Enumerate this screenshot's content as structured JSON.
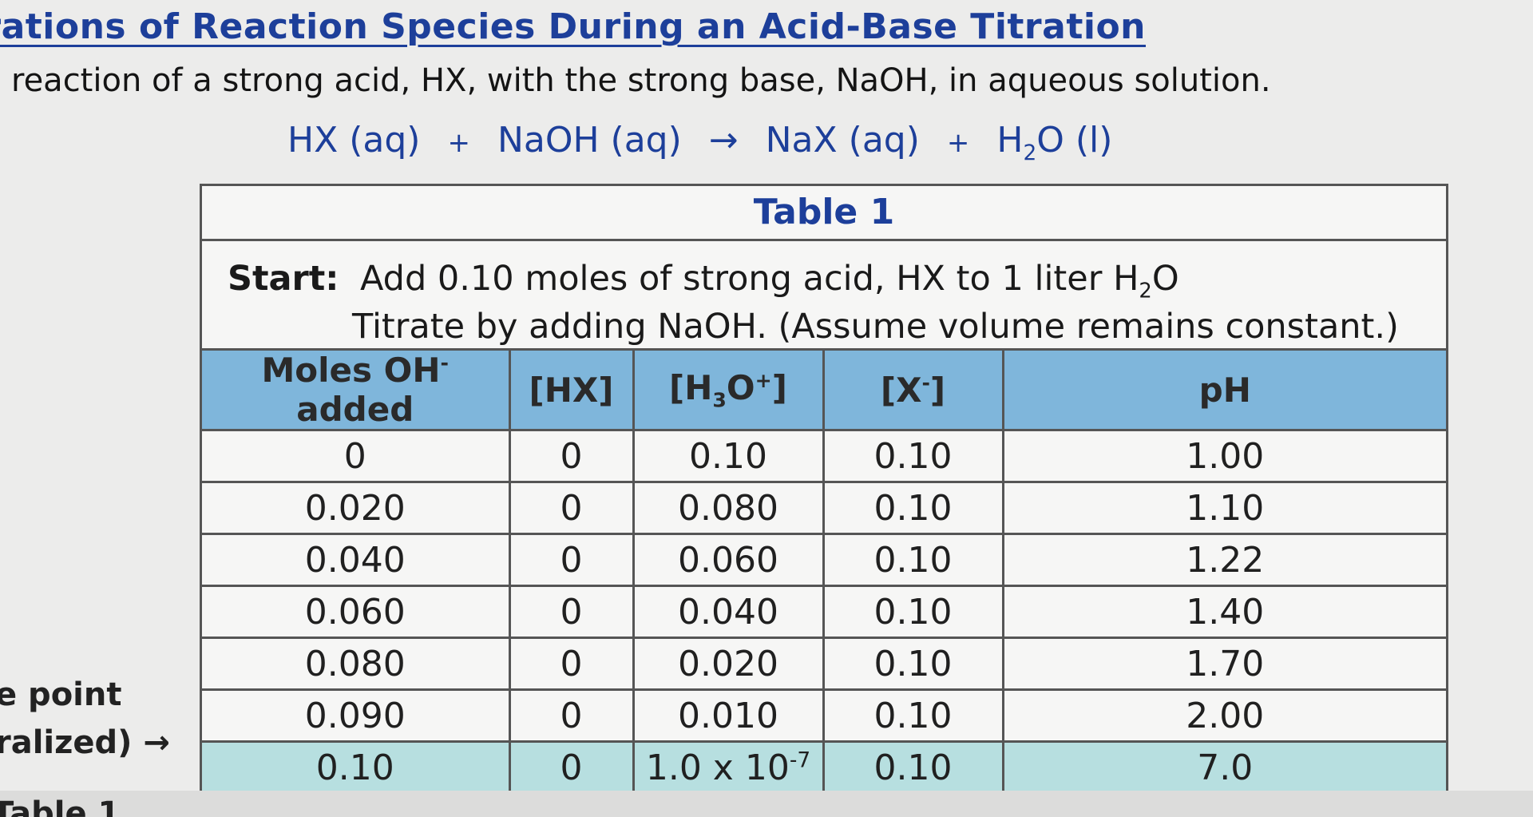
{
  "title": "entrations of Reaction Species During an Acid-Base Titration",
  "intro": "reaction of a strong acid, HX, with the strong base, NaOH, in aqueous solution.",
  "equation": {
    "reactant1": "HX (aq)",
    "plus1": "+",
    "reactant2": "NaOH (aq)",
    "arrow": "→",
    "product1": "NaX (aq)",
    "plus2": "+",
    "product2_prefix": "H",
    "product2_sub": "2",
    "product2_suffix": "O (l)"
  },
  "table": {
    "caption": "Table 1",
    "start_label": "Start:",
    "start_line1_prefix": "Add 0.10 moles of strong acid, HX to 1 liter H",
    "start_line1_sub": "2",
    "start_line1_suffix": "O",
    "start_line2": "Titrate by adding NaOH. (Assume volume remains constant.)",
    "headers": {
      "moles_prefix": "Moles OH",
      "moles_sup": "-",
      "moles_suffix": " added",
      "hx": "[HX]",
      "h3o_prefix": "[H",
      "h3o_sub": "3",
      "h3o_mid": "O",
      "h3o_sup": "+",
      "h3o_suffix": "]",
      "x_prefix": "[X",
      "x_sup": "-",
      "x_suffix": "]",
      "ph": "pH"
    },
    "rows": [
      {
        "moles": "0",
        "hx": "0",
        "h3o": "0.10",
        "x": "0.10",
        "ph": "1.00"
      },
      {
        "moles": "0.020",
        "hx": "0",
        "h3o": "0.080",
        "x": "0.10",
        "ph": "1.10"
      },
      {
        "moles": "0.040",
        "hx": "0",
        "h3o": "0.060",
        "x": "0.10",
        "ph": "1.22"
      },
      {
        "moles": "0.060",
        "hx": "0",
        "h3o": "0.040",
        "x": "0.10",
        "ph": "1.40"
      },
      {
        "moles": "0.080",
        "hx": "0",
        "h3o": "0.020",
        "x": "0.10",
        "ph": "1.70"
      },
      {
        "moles": "0.090",
        "hx": "0",
        "h3o": "0.010",
        "x": "0.10",
        "ph": "2.00"
      },
      {
        "moles": "0.10",
        "hx": "0",
        "h3o_base": "1.0 x 10",
        "h3o_exp": "-7",
        "x": "0.10",
        "ph": "7.0"
      }
    ]
  },
  "side_note": {
    "line1": "e point",
    "line2": "ralized) →"
  },
  "bottom_fragment": "Table 1",
  "colors": {
    "title_blue": "#1d3f9a",
    "header_blue": "#7fb6db",
    "equivalence_row": "#b7dfe0"
  }
}
